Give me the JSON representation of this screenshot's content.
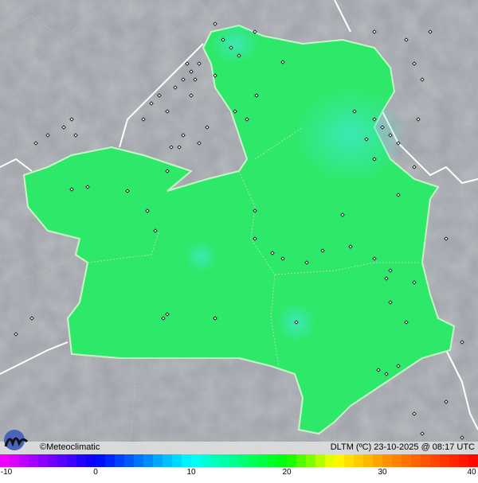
{
  "map": {
    "region_color": "#2ee86a",
    "background_color": "#9a9ea4",
    "station_icon": "diamond-icon"
  },
  "footer": {
    "credit": "©Meteoclimatic",
    "caption": "DLTM (ºC)  23-10-2025 @ 08:17 UTC"
  },
  "legend": {
    "min": -10,
    "max": 40,
    "ticks": [
      "-10",
      "0",
      "10",
      "20",
      "30",
      "40"
    ],
    "color_stops": [
      {
        "value": -10,
        "color": "#ff00ff"
      },
      {
        "value": 0,
        "color": "#0000ff"
      },
      {
        "value": 10,
        "color": "#00ffff"
      },
      {
        "value": 20,
        "color": "#00ff00"
      },
      {
        "value": 25,
        "color": "#ffff00"
      },
      {
        "value": 30,
        "color": "#ff9900"
      },
      {
        "value": 40,
        "color": "#ff0000"
      }
    ]
  }
}
